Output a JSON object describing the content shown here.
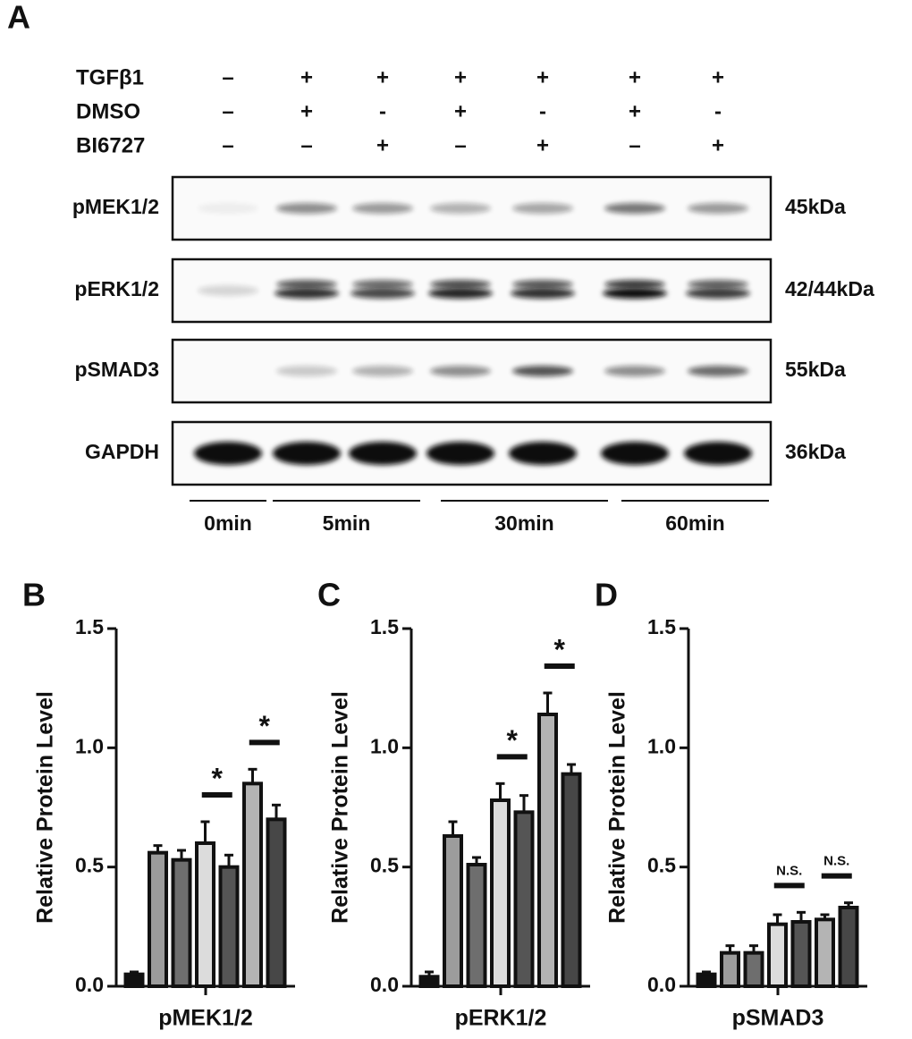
{
  "blot": {
    "panel": "A",
    "treatments": [
      {
        "name": "TGFβ1",
        "marks": [
          "–",
          "+",
          "+",
          "+",
          "+",
          "+",
          "+"
        ]
      },
      {
        "name": "DMSO",
        "marks": [
          "–",
          "+",
          "-",
          "+",
          "-",
          "+",
          "-"
        ]
      },
      {
        "name": "BI6727",
        "marks": [
          "–",
          "–",
          "+",
          "–",
          "+",
          "–",
          "+"
        ]
      }
    ],
    "bands": [
      {
        "name": "pMEK1/2",
        "size": "45kDa"
      },
      {
        "name": "pERK1/2",
        "size": "42/44kDa"
      },
      {
        "name": "pSMAD3",
        "size": "55kDa"
      },
      {
        "name": "GAPDH",
        "size": "36kDa"
      }
    ],
    "times": [
      "0min",
      "5min",
      "30min",
      "60min"
    ]
  },
  "chart_data": [
    {
      "type": "bar",
      "panel": "B",
      "ylabel": "Relative Protein Level",
      "xlabel": "pMEK1/2",
      "values": [
        0.05,
        0.56,
        0.53,
        0.6,
        0.5,
        0.85,
        0.7
      ],
      "errors": [
        0.01,
        0.03,
        0.04,
        0.09,
        0.05,
        0.06,
        0.06
      ],
      "colors": [
        "#111111",
        "#9c9c9c",
        "#6e6e6e",
        "#dcdcdc",
        "#555555",
        "#b4b4b4",
        "#474747"
      ],
      "significance": [
        null,
        "*",
        "*"
      ],
      "ylim": [
        0,
        1.5
      ],
      "yticks": [
        {
          "value": 0,
          "label": "0.0"
        },
        {
          "value": 0.5,
          "label": "0.5"
        },
        {
          "value": 1,
          "label": "1.0"
        },
        {
          "value": 1.5,
          "label": "1.5"
        }
      ]
    },
    {
      "type": "bar",
      "panel": "C",
      "ylabel": "Relative Protein Level",
      "xlabel": "pERK1/2",
      "values": [
        0.04,
        0.63,
        0.51,
        0.78,
        0.73,
        1.14,
        0.89
      ],
      "errors": [
        0.02,
        0.06,
        0.03,
        0.07,
        0.07,
        0.09,
        0.04
      ],
      "colors": [
        "#111111",
        "#9c9c9c",
        "#6e6e6e",
        "#dcdcdc",
        "#555555",
        "#b4b4b4",
        "#474747"
      ],
      "significance": [
        null,
        "*",
        "*"
      ],
      "ylim": [
        0,
        1.5
      ],
      "yticks": [
        {
          "value": 0,
          "label": "0.0"
        },
        {
          "value": 0.5,
          "label": "0.5"
        },
        {
          "value": 1,
          "label": "1.0"
        },
        {
          "value": 1.5,
          "label": "1.5"
        }
      ]
    },
    {
      "type": "bar",
      "panel": "D",
      "ylabel": "Relative Protein Level",
      "xlabel": "pSMAD3",
      "values": [
        0.05,
        0.14,
        0.14,
        0.26,
        0.27,
        0.28,
        0.33
      ],
      "errors": [
        0.01,
        0.03,
        0.03,
        0.04,
        0.04,
        0.02,
        0.02
      ],
      "colors": [
        "#111111",
        "#9c9c9c",
        "#6e6e6e",
        "#dcdcdc",
        "#555555",
        "#b4b4b4",
        "#474747"
      ],
      "significance": [
        null,
        "N.S.",
        "N.S."
      ],
      "ylim": [
        0,
        1.5
      ],
      "yticks": [
        {
          "value": 0,
          "label": "0.0"
        },
        {
          "value": 0.5,
          "label": "0.5"
        },
        {
          "value": 1,
          "label": "1.0"
        },
        {
          "value": 1.5,
          "label": "1.5"
        }
      ]
    }
  ]
}
